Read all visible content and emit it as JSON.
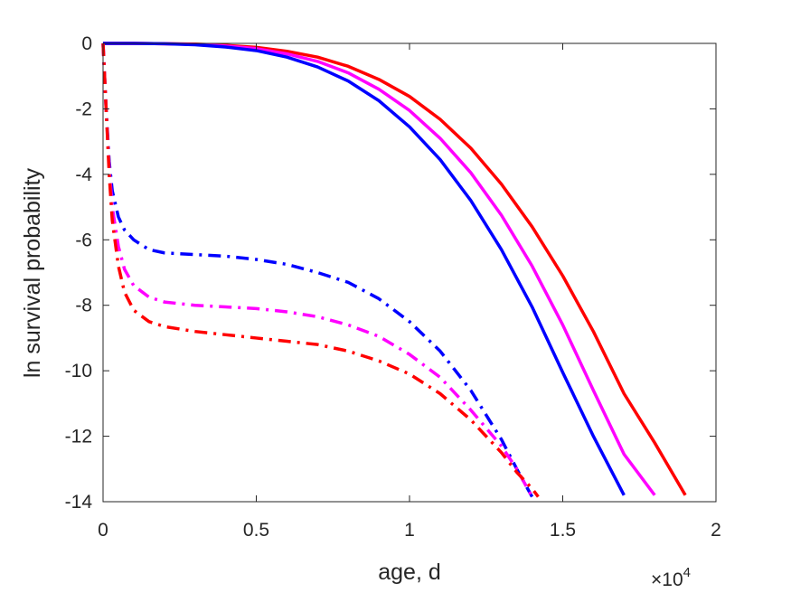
{
  "chart_data": {
    "type": "line",
    "xlabel": "age, d",
    "ylabel": "ln survival probability",
    "x_exponent_base": "×10",
    "x_exponent_power": "4",
    "xlim": [
      0,
      2
    ],
    "ylim": [
      -14,
      0
    ],
    "xticks": [
      "0",
      "0.5",
      "1",
      "1.5",
      "2"
    ],
    "yticks": [
      "0",
      "-2",
      "-4",
      "-6",
      "-8",
      "-10",
      "-12",
      "-14"
    ],
    "xtick_values": [
      0,
      0.5,
      1,
      1.5,
      2
    ],
    "ytick_values": [
      0,
      -2,
      -4,
      -6,
      -8,
      -10,
      -12,
      -14
    ],
    "grid": false,
    "box": true,
    "series": [
      {
        "color": "#ff0000",
        "style": "solid",
        "x": [
          0,
          0.1,
          0.2,
          0.3,
          0.4,
          0.5,
          0.6,
          0.7,
          0.8,
          0.9,
          1.0,
          1.1,
          1.2,
          1.3,
          1.4,
          1.5,
          1.6,
          1.7,
          1.8,
          1.9
        ],
        "y": [
          0,
          0,
          -0.01,
          -0.02,
          -0.06,
          -0.12,
          -0.24,
          -0.42,
          -0.7,
          -1.1,
          -1.62,
          -2.32,
          -3.2,
          -4.3,
          -5.6,
          -7.1,
          -8.8,
          -10.7,
          -12.2,
          -13.8
        ]
      },
      {
        "color": "#ff00ff",
        "style": "solid",
        "x": [
          0,
          0.1,
          0.2,
          0.3,
          0.4,
          0.5,
          0.6,
          0.7,
          0.8,
          0.9,
          1.0,
          1.1,
          1.2,
          1.3,
          1.4,
          1.5,
          1.6,
          1.7,
          1.8
        ],
        "y": [
          0,
          0,
          -0.01,
          -0.03,
          -0.08,
          -0.16,
          -0.32,
          -0.55,
          -0.9,
          -1.4,
          -2.05,
          -2.9,
          -3.95,
          -5.25,
          -6.8,
          -8.6,
          -10.6,
          -12.55,
          -13.8
        ]
      },
      {
        "color": "#0000ff",
        "style": "solid",
        "x": [
          0,
          0.1,
          0.2,
          0.3,
          0.4,
          0.5,
          0.6,
          0.7,
          0.8,
          0.9,
          1.0,
          1.1,
          1.2,
          1.3,
          1.4,
          1.5,
          1.6,
          1.7
        ],
        "y": [
          0,
          0,
          -0.01,
          -0.04,
          -0.11,
          -0.22,
          -0.42,
          -0.72,
          -1.15,
          -1.75,
          -2.55,
          -3.55,
          -4.8,
          -6.3,
          -8.05,
          -10.05,
          -12.0,
          -13.8
        ]
      },
      {
        "color": "#0000ff",
        "style": "dashdot",
        "x": [
          0,
          0.01,
          0.02,
          0.03,
          0.05,
          0.07,
          0.1,
          0.15,
          0.2,
          0.3,
          0.4,
          0.5,
          0.6,
          0.7,
          0.8,
          0.9,
          1.0,
          1.1,
          1.2,
          1.3,
          1.35,
          1.4
        ],
        "y": [
          0,
          -2.0,
          -3.6,
          -4.5,
          -5.3,
          -5.7,
          -6.0,
          -6.3,
          -6.4,
          -6.45,
          -6.5,
          -6.6,
          -6.75,
          -7.0,
          -7.3,
          -7.8,
          -8.5,
          -9.4,
          -10.6,
          -12.1,
          -13.0,
          -13.85
        ]
      },
      {
        "color": "#ff00ff",
        "style": "dashdot",
        "x": [
          0,
          0.01,
          0.02,
          0.03,
          0.05,
          0.07,
          0.1,
          0.15,
          0.2,
          0.3,
          0.4,
          0.5,
          0.6,
          0.7,
          0.8,
          0.9,
          1.0,
          1.1,
          1.2,
          1.3,
          1.35,
          1.4
        ],
        "y": [
          0,
          -2.0,
          -3.8,
          -5.0,
          -6.2,
          -6.9,
          -7.4,
          -7.75,
          -7.9,
          -8.0,
          -8.05,
          -8.1,
          -8.2,
          -8.35,
          -8.6,
          -8.95,
          -9.5,
          -10.2,
          -11.2,
          -12.3,
          -13.0,
          -13.85
        ]
      },
      {
        "color": "#ff0000",
        "style": "dashdot",
        "x": [
          0,
          0.01,
          0.02,
          0.03,
          0.05,
          0.07,
          0.1,
          0.15,
          0.2,
          0.3,
          0.4,
          0.5,
          0.6,
          0.7,
          0.8,
          0.9,
          1.0,
          1.1,
          1.2,
          1.3,
          1.35,
          1.4,
          1.42
        ],
        "y": [
          0,
          -2.0,
          -4.0,
          -5.4,
          -6.8,
          -7.6,
          -8.15,
          -8.5,
          -8.65,
          -8.8,
          -8.9,
          -9.0,
          -9.1,
          -9.2,
          -9.4,
          -9.7,
          -10.1,
          -10.7,
          -11.5,
          -12.5,
          -13.1,
          -13.6,
          -13.85
        ]
      }
    ]
  }
}
